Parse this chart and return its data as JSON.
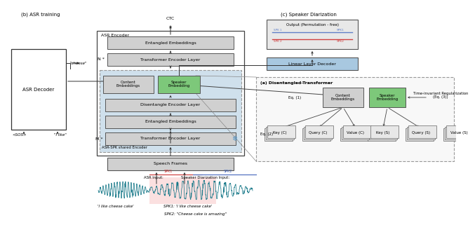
{
  "bg_color": "#ffffff",
  "section_b_title": "(b) ASR training",
  "section_c_title": "(c) Speaker Diarization",
  "section_a_title": "(a) Disentangled-Transformer",
  "asr_decoder_label": "ASR Decoder",
  "asr_encoder_label": "ASR Encoder",
  "speech_frames_label": "Speech Frames",
  "entangled1_label": "Entangled Embeddings",
  "transformer_n_label": "Transformer Encoder Layer",
  "content_emb_label": "Content\nEmbeddings",
  "speaker_emb_label": "Speaker\nEmbedding",
  "disentangle_label": "Disentangle Encoder Layer",
  "entangled2_label": "Entangled Embeddings",
  "transformer_m_label": "Transformer Encoder Layer",
  "asr_spk_label": "ASR-SPK shared Encoder",
  "n_label": "N *",
  "m_label": "M *",
  "ctc_label": "CTC",
  "cheese_label": "\"cheese\"",
  "ilike_label": "\"I like\"",
  "sos_label": "<SOS>",
  "asr_input_label": "ASR Input:",
  "spk_input_label": "Speaker Diarization Input:",
  "utterance_label": "'I like cheese cake'",
  "spk1_label": "SPK1: 'I like cheese cake'",
  "spk2_label": "SPK2: \"Cheese cake is amazing\"",
  "output_label": "Output (Permutation - free)",
  "linear_decoder_label": "Linear Layer Decoder",
  "key_c_label": "Key (C)",
  "query_c_label": "Query (C)",
  "value_c_label": "Value (C)",
  "key_s_label": "Key (S)",
  "query_s_label": "Query (S)",
  "value_s_label": "Value (S)",
  "eq1_label": "Eq. (1)",
  "eq2_label": "Eq. (2)",
  "time_inv_label": "Time-invariant Regularization\n(Eq. (3))",
  "gray_box": "#d0d0d0",
  "light_gray": "#e8e8e8",
  "green_box": "#7dc87a",
  "light_blue_bg": "#c8dde8",
  "blue_box": "#a8c8e0",
  "white": "#ffffff",
  "pink_bg": "#fad4d4",
  "teal_wave": "#1a7a8a",
  "red_line": "#e05050",
  "blue_line": "#5070d0",
  "dashed_border": "#999999"
}
